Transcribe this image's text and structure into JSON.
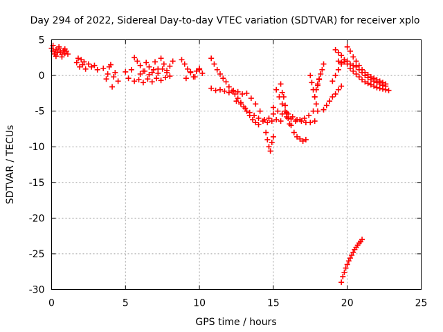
{
  "chart_data": {
    "type": "scatter",
    "title": "Day 294 of 2022, Sidereal Day-to-day VTEC variation (SDTVAR) for receiver xplo",
    "xlabel": "GPS time / hours",
    "ylabel": "SDTVAR / TECUs",
    "xlim": [
      0,
      25
    ],
    "ylim": [
      -30,
      5
    ],
    "grid": true,
    "marker": "plus",
    "color": "#ff0000",
    "x_ticks": [
      0,
      5,
      10,
      15,
      20,
      25
    ],
    "x_tick_labels": [
      "0",
      "5",
      "10",
      "15",
      "20",
      "25"
    ],
    "y_ticks": [
      5,
      0,
      -5,
      -10,
      -15,
      -20,
      -25,
      -30
    ],
    "y_tick_labels": [
      "5",
      "0",
      "-5",
      "-10",
      "-15",
      "-20",
      "-25",
      "-30"
    ],
    "series": [
      {
        "name": "SDTVAR",
        "x": [
          0.0,
          0.1,
          0.2,
          0.3,
          0.4,
          0.5,
          0.6,
          0.7,
          0.8,
          0.9,
          1.0,
          1.1,
          0.1,
          0.3,
          0.5,
          0.7,
          0.9,
          1.7,
          1.9,
          2.1,
          2.3,
          2.5,
          2.7,
          2.9,
          3.1,
          1.8,
          2.0,
          2.2,
          3.5,
          3.7,
          3.9,
          4.1,
          4.3,
          4.5,
          3.8,
          4.0,
          4.2,
          5.0,
          5.2,
          5.4,
          5.6,
          5.8,
          6.0,
          6.2,
          6.4,
          6.6,
          6.8,
          7.0,
          7.2,
          7.4,
          7.6,
          7.8,
          8.0,
          8.2,
          5.6,
          5.9,
          6.2,
          6.5,
          6.8,
          7.1,
          7.4,
          7.7,
          8.0,
          6.0,
          6.3,
          6.6,
          6.9,
          7.2,
          7.5,
          7.8,
          8.8,
          9.0,
          9.2,
          9.4,
          9.6,
          9.8,
          10.0,
          10.2,
          9.1,
          9.4,
          9.7,
          10.0,
          10.8,
          11.0,
          11.2,
          11.4,
          11.6,
          11.8,
          12.0,
          12.2,
          12.4,
          12.6,
          12.8,
          13.0,
          13.2,
          13.4,
          13.6,
          13.8,
          14.0,
          10.8,
          11.1,
          11.4,
          11.7,
          12.0,
          12.3,
          12.6,
          12.9,
          13.2,
          13.5,
          13.8,
          14.1,
          14.4,
          14.7,
          15.0,
          12.5,
          12.8,
          13.1,
          13.4,
          13.7,
          14.0,
          14.3,
          14.6,
          14.9,
          15.2,
          15.5,
          14.5,
          14.6,
          14.7,
          14.8,
          14.9,
          15.0,
          15.0,
          15.3,
          15.6,
          15.9,
          16.2,
          16.5,
          16.8,
          17.1,
          17.4,
          17.7,
          15.2,
          15.4,
          15.6,
          15.8,
          16.0,
          16.2,
          16.4,
          16.6,
          16.8,
          17.0,
          17.2,
          16.0,
          16.3,
          16.6,
          16.9,
          17.2,
          17.5,
          17.8,
          15.5,
          15.6,
          15.7,
          15.8,
          15.9,
          16.0,
          16.1,
          17.5,
          17.6,
          17.7,
          17.8,
          17.9,
          18.0,
          17.8,
          17.9,
          18.0,
          18.1,
          18.4,
          18.6,
          18.8,
          19.0,
          19.2,
          19.4,
          19.6,
          18.0,
          18.1,
          18.2,
          18.3,
          18.4,
          19.2,
          19.4,
          19.6,
          19.8,
          20.0,
          20.2,
          20.4,
          20.6,
          20.8,
          21.0,
          21.2,
          21.4,
          21.6,
          21.8,
          22.0,
          22.2,
          22.4,
          22.6,
          22.8,
          19.4,
          19.6,
          19.8,
          20.0,
          20.2,
          20.4,
          20.6,
          20.8,
          21.0,
          21.2,
          21.4,
          21.6,
          21.8,
          22.0,
          22.2,
          22.4,
          22.6,
          20.0,
          20.2,
          20.4,
          20.6,
          20.8,
          21.0,
          21.2,
          21.4,
          21.6,
          21.8,
          22.0,
          22.2,
          22.4,
          22.6,
          19.0,
          19.2,
          19.4,
          19.6,
          19.8,
          19.6,
          19.7,
          19.8,
          19.9,
          20.0,
          20.1,
          20.2,
          20.3,
          20.4,
          20.5,
          20.6,
          20.7,
          20.8,
          20.9,
          21.0
        ],
        "y": [
          3.8,
          3.4,
          3.0,
          3.6,
          3.2,
          3.8,
          3.3,
          2.9,
          3.5,
          3.1,
          3.4,
          3.0,
          4.2,
          2.7,
          4.0,
          2.6,
          3.7,
          1.8,
          1.2,
          1.5,
          0.9,
          1.6,
          1.2,
          1.4,
          0.8,
          2.4,
          2.2,
          1.9,
          1.0,
          -0.5,
          1.2,
          -1.6,
          0.4,
          -0.8,
          0.2,
          1.5,
          -0.2,
          0.5,
          -0.4,
          0.8,
          2.5,
          2.0,
          1.4,
          0.6,
          1.8,
          1.2,
          0.4,
          1.9,
          0.9,
          2.4,
          1.6,
          0.7,
          1.3,
          2.0,
          -0.8,
          -0.6,
          -1.0,
          -0.5,
          -0.9,
          -0.4,
          -0.7,
          -0.3,
          -0.1,
          0.2,
          0.6,
          0.1,
          0.8,
          0.3,
          0.9,
          0.4,
          2.2,
          1.6,
          0.9,
          0.4,
          -0.2,
          0.6,
          1.0,
          0.3,
          -0.4,
          0.5,
          -0.2,
          0.8,
          2.4,
          1.6,
          0.8,
          0.2,
          -0.4,
          -0.9,
          -1.6,
          -2.2,
          -2.6,
          -3.2,
          -3.8,
          -4.4,
          -5.0,
          -5.6,
          -6.2,
          -6.6,
          -6.9,
          -1.8,
          -2.1,
          -2.0,
          -2.2,
          -2.4,
          -2.1,
          -2.3,
          -2.6,
          -2.5,
          -3.2,
          -4.0,
          -5.0,
          -6.2,
          -6.0,
          -5.4,
          -3.6,
          -4.0,
          -4.6,
          -5.2,
          -5.6,
          -6.0,
          -6.4,
          -6.6,
          -6.4,
          -6.2,
          -6.4,
          -8.0,
          -9.0,
          -10.0,
          -10.6,
          -9.4,
          -8.6,
          -4.5,
          -5.0,
          -5.4,
          -5.8,
          -6.1,
          -6.4,
          -6.2,
          -6.0,
          -5.6,
          -5.0,
          -2.0,
          -3.0,
          -4.0,
          -5.0,
          -6.0,
          -7.0,
          -8.0,
          -8.6,
          -8.9,
          -9.2,
          -9.0,
          -5.4,
          -5.8,
          -6.2,
          -6.4,
          -6.6,
          -6.6,
          -6.4,
          -1.2,
          -2.4,
          -3.0,
          -4.2,
          -5.2,
          -6.0,
          -6.8,
          0.0,
          -1.0,
          -2.0,
          -3.0,
          -4.0,
          -5.0,
          -3.0,
          -2.0,
          -1.2,
          -0.5,
          -4.8,
          -4.2,
          -3.6,
          -3.0,
          -2.6,
          -2.0,
          -1.5,
          -1.4,
          -0.6,
          0.2,
          0.8,
          1.6,
          3.6,
          3.2,
          2.8,
          2.2,
          1.6,
          1.0,
          0.6,
          0.2,
          -0.2,
          -0.6,
          -0.9,
          -1.1,
          -1.3,
          -1.5,
          -1.7,
          -1.8,
          -1.9,
          -2.0,
          -2.1,
          2.0,
          1.8,
          1.9,
          2.0,
          1.6,
          1.4,
          1.2,
          0.8,
          0.4,
          0.0,
          -0.3,
          -0.6,
          -0.8,
          -1.0,
          -1.2,
          -1.4,
          -1.5,
          4.0,
          3.4,
          2.6,
          2.0,
          1.4,
          0.8,
          0.4,
          0.1,
          -0.2,
          -0.4,
          -0.6,
          -0.8,
          -1.0,
          -1.2,
          -0.8,
          0.0,
          0.8,
          1.6,
          2.2,
          -29.0,
          -28.2,
          -27.6,
          -27.0,
          -26.5,
          -26.0,
          -25.6,
          -25.2,
          -24.8,
          -24.4,
          -24.1,
          -23.8,
          -23.5,
          -23.3,
          -23.0
        ]
      }
    ]
  }
}
